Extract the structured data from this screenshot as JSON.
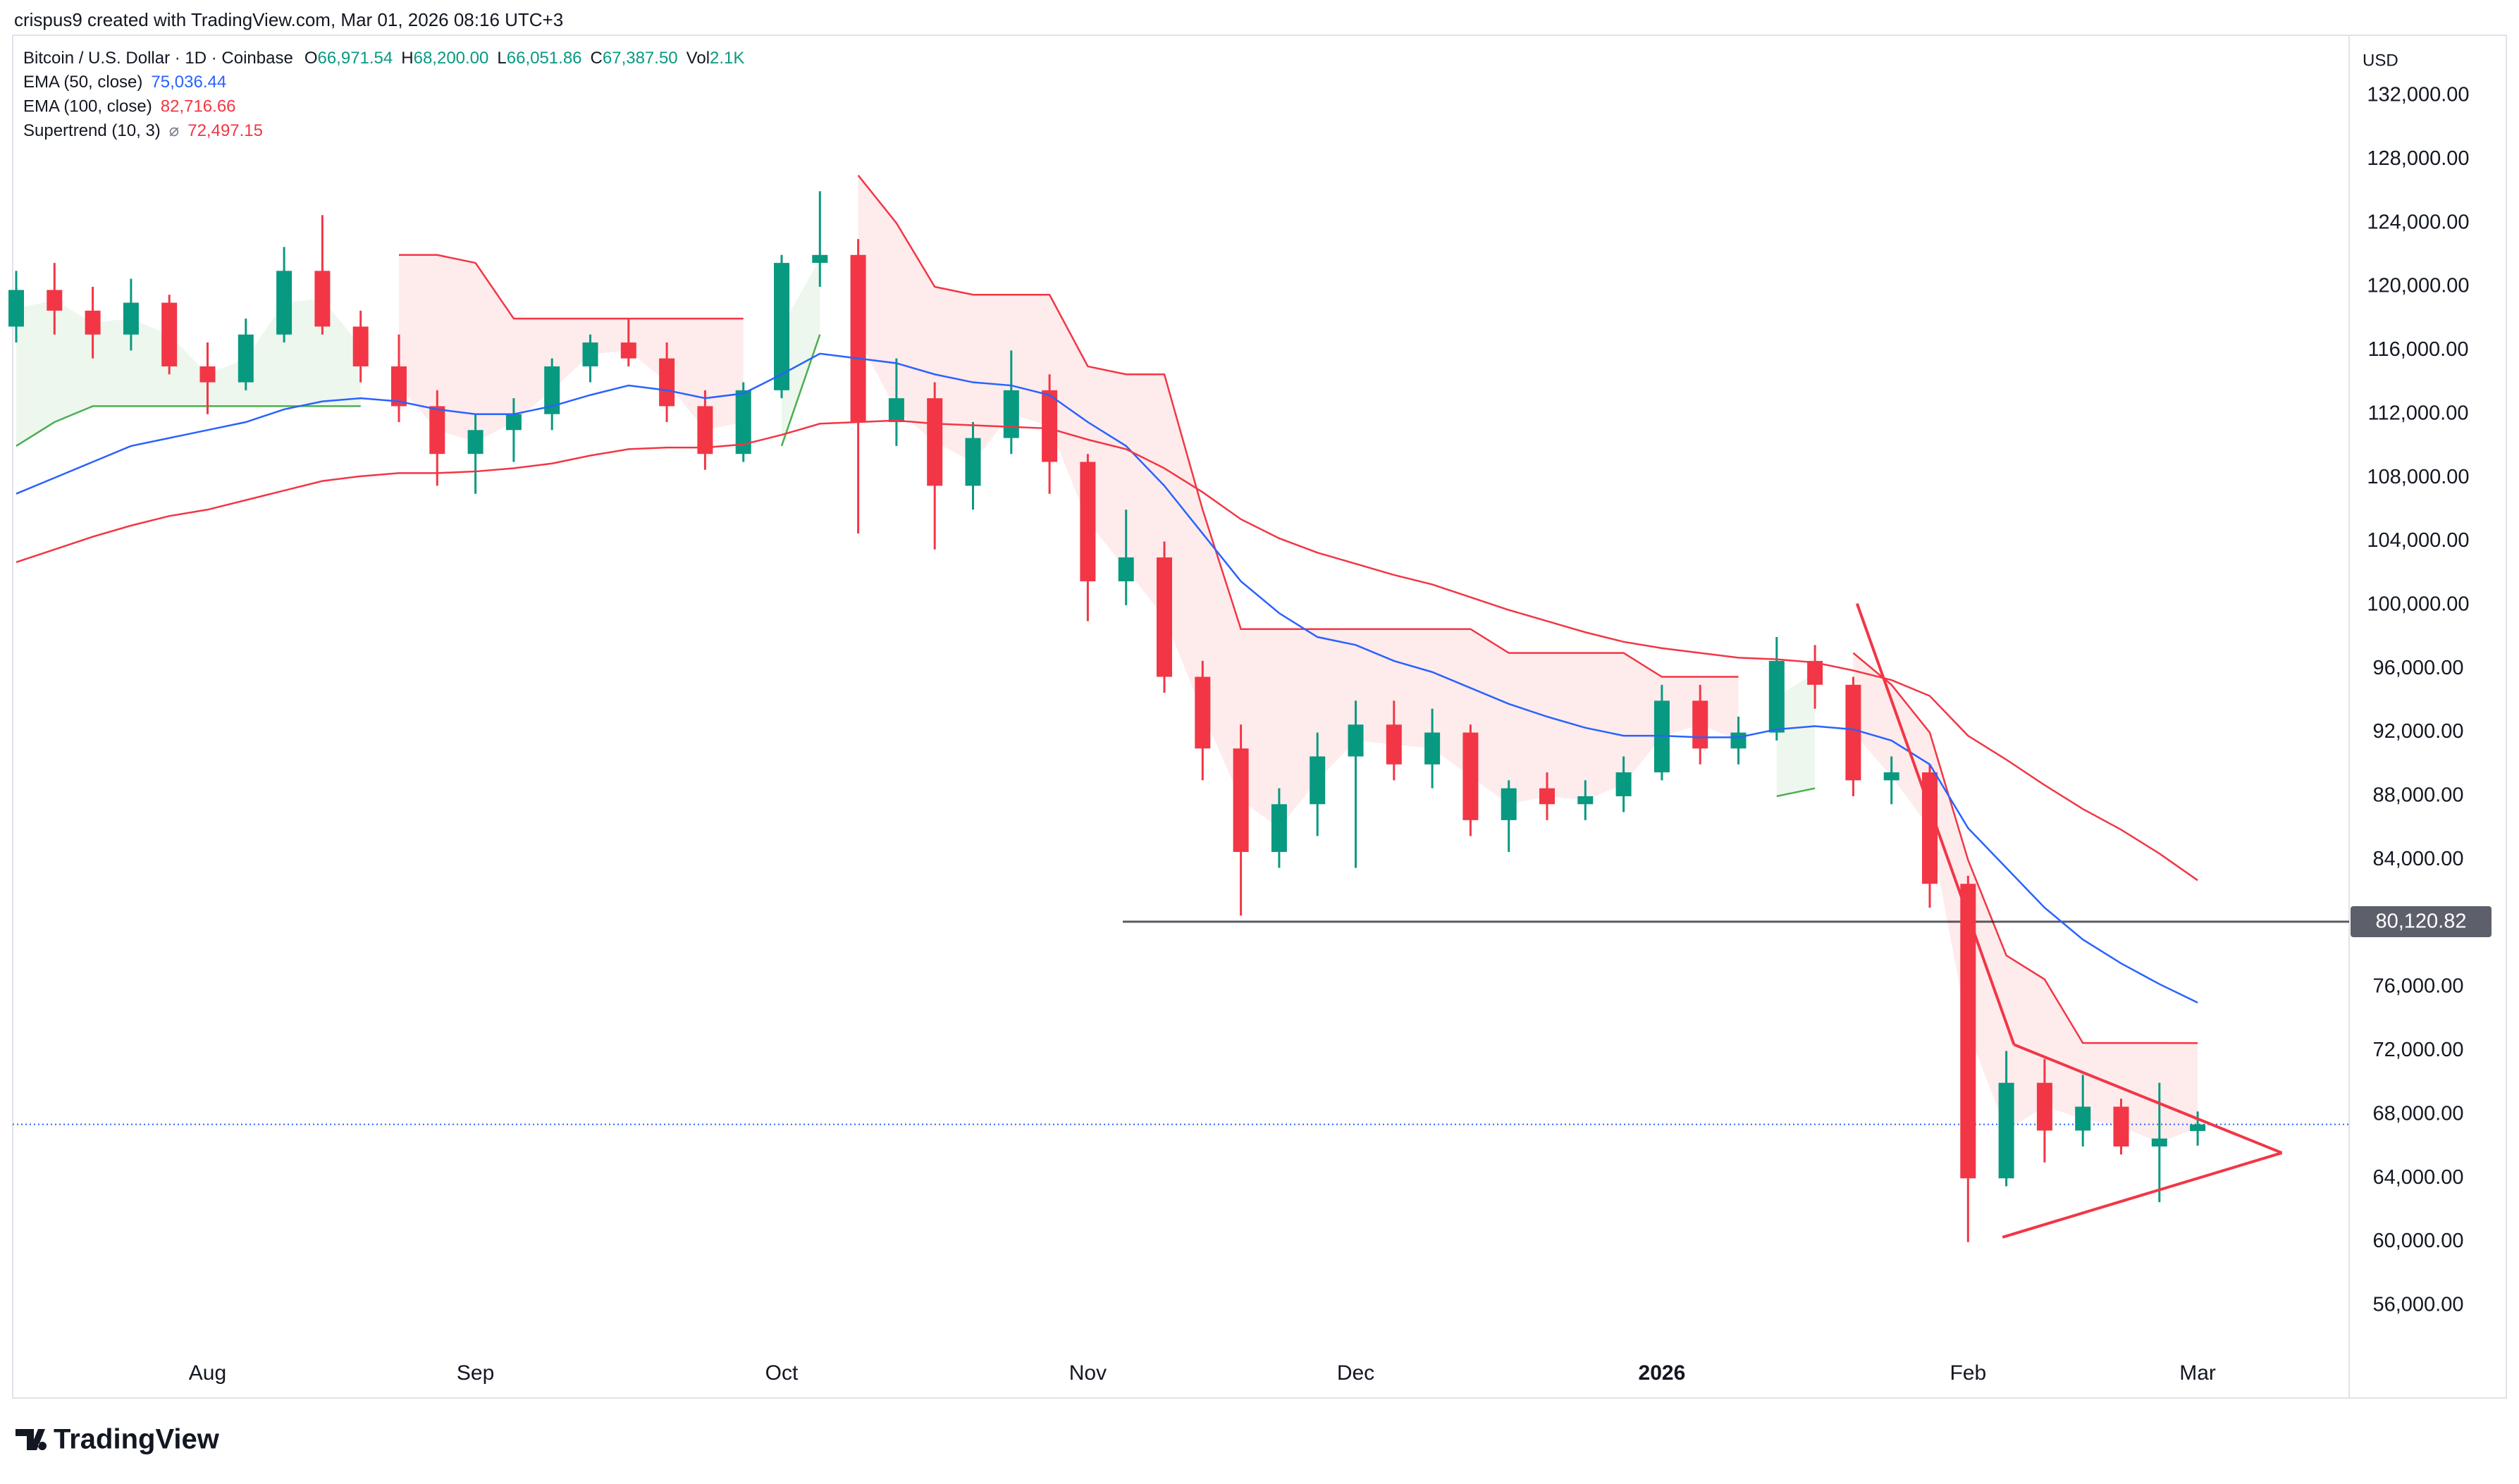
{
  "header": {
    "credit": "crispus9 created with TradingView.com, Mar 01, 2026 08:16 UTC+3",
    "symbol": "Bitcoin / U.S. Dollar · 1D · Coinbase",
    "ohlc": [
      [
        "O",
        "66,971.54"
      ],
      [
        "H",
        "68,200.00"
      ],
      [
        "L",
        "66,051.86"
      ],
      [
        "C",
        "67,387.50"
      ],
      [
        "Vol",
        "2.1K"
      ]
    ],
    "currency": "USD"
  },
  "brand": "TradingView",
  "chart_data": {
    "type": "candlestick",
    "categories": [
      null,
      null,
      null,
      null,
      null,
      "Aug",
      null,
      null,
      null,
      null,
      null,
      null,
      "Sep",
      null,
      null,
      null,
      null,
      null,
      null,
      null,
      "Oct",
      null,
      null,
      null,
      null,
      null,
      null,
      null,
      "Nov",
      null,
      null,
      null,
      null,
      null,
      null,
      "Dec",
      null,
      null,
      null,
      null,
      null,
      null,
      null,
      "2026",
      null,
      null,
      null,
      null,
      null,
      null,
      null,
      "Feb",
      null,
      null,
      null,
      null,
      null,
      "Mar"
    ],
    "candles": [
      [
        117500,
        121000,
        116500,
        119800
      ],
      [
        119800,
        121500,
        117000,
        118500
      ],
      [
        118500,
        120000,
        115500,
        117000
      ],
      [
        117000,
        120500,
        116000,
        119000
      ],
      [
        119000,
        119500,
        114500,
        115000
      ],
      [
        115000,
        116500,
        112000,
        114000
      ],
      [
        114000,
        118000,
        113500,
        117000
      ],
      [
        117000,
        122500,
        116500,
        121000
      ],
      [
        121000,
        124500,
        117000,
        117500
      ],
      [
        117500,
        118500,
        114000,
        115000
      ],
      [
        115000,
        117000,
        111500,
        112500
      ],
      [
        112500,
        113500,
        107500,
        109500
      ],
      [
        109500,
        112000,
        107000,
        111000
      ],
      [
        111000,
        113000,
        109000,
        112000
      ],
      [
        112000,
        115500,
        111000,
        115000
      ],
      [
        115000,
        117000,
        114000,
        116500
      ],
      [
        116500,
        118000,
        115000,
        115500
      ],
      [
        115500,
        116500,
        111500,
        112500
      ],
      [
        112500,
        113500,
        108500,
        109500
      ],
      [
        109500,
        114000,
        109000,
        113500
      ],
      [
        113500,
        122000,
        113000,
        121500
      ],
      [
        121500,
        126000,
        120000,
        122000
      ],
      [
        122000,
        123000,
        104500,
        111500
      ],
      [
        111500,
        115500,
        110000,
        113000
      ],
      [
        113000,
        114000,
        103500,
        107500
      ],
      [
        107500,
        111500,
        106000,
        110500
      ],
      [
        110500,
        116000,
        109500,
        113500
      ],
      [
        113500,
        114500,
        107000,
        109000
      ],
      [
        109000,
        109500,
        99000,
        101500
      ],
      [
        101500,
        106000,
        100000,
        103000
      ],
      [
        103000,
        104000,
        94500,
        95500
      ],
      [
        95500,
        96500,
        89000,
        91000
      ],
      [
        91000,
        92500,
        80500,
        84500
      ],
      [
        84500,
        88500,
        83500,
        87500
      ],
      [
        87500,
        92000,
        85500,
        90500
      ],
      [
        90500,
        94000,
        83500,
        92500
      ],
      [
        92500,
        94000,
        89000,
        90000
      ],
      [
        90000,
        93500,
        88500,
        92000
      ],
      [
        92000,
        92500,
        85500,
        86500
      ],
      [
        86500,
        89000,
        84500,
        88500
      ],
      [
        88500,
        89500,
        86500,
        87500
      ],
      [
        87500,
        89000,
        86500,
        88000
      ],
      [
        88000,
        90500,
        87000,
        89500
      ],
      [
        89500,
        95000,
        89000,
        94000
      ],
      [
        94000,
        95000,
        90000,
        91000
      ],
      [
        91000,
        93000,
        90000,
        92000
      ],
      [
        92000,
        98000,
        91500,
        96500
      ],
      [
        96500,
        97500,
        93500,
        95000
      ],
      [
        95000,
        95500,
        88000,
        89000
      ],
      [
        89000,
        90500,
        87500,
        89500
      ],
      [
        89500,
        90000,
        81000,
        82500
      ],
      [
        82500,
        83000,
        60000,
        64000
      ],
      [
        64000,
        72000,
        63500,
        70000
      ],
      [
        70000,
        71500,
        65000,
        67000
      ],
      [
        67000,
        70500,
        66000,
        68500
      ],
      [
        68500,
        69000,
        65500,
        66000
      ],
      [
        66000,
        70000,
        62500,
        66500
      ],
      [
        66971.54,
        68200,
        66051.86,
        67387.5
      ]
    ],
    "up_color": "#089981",
    "down_color": "#f23645",
    "series": [
      {
        "name": "EMA (50, close)",
        "legend_value": "75,036.44",
        "color": "#2962ff",
        "values": [
          107000,
          108000,
          109000,
          110000,
          110500,
          111000,
          111500,
          112300,
          112800,
          113000,
          112800,
          112300,
          112000,
          112000,
          112500,
          113200,
          113800,
          113500,
          113000,
          113300,
          114500,
          115800,
          115500,
          115200,
          114500,
          114000,
          113800,
          113200,
          111500,
          110000,
          107500,
          104500,
          101500,
          99500,
          98000,
          97500,
          96500,
          95800,
          94800,
          93800,
          93000,
          92300,
          91800,
          91800,
          91700,
          91700,
          92200,
          92400,
          92200,
          91500,
          90000,
          86000,
          83500,
          81000,
          79000,
          77500,
          76200,
          75036.44
        ]
      },
      {
        "name": "EMA (100, close)",
        "legend_value": "82,716.66",
        "color": "#f23645",
        "values": [
          102700,
          103500,
          104300,
          105000,
          105600,
          106000,
          106600,
          107200,
          107800,
          108100,
          108300,
          108300,
          108400,
          108600,
          108900,
          109400,
          109800,
          109900,
          109900,
          110100,
          110700,
          111400,
          111500,
          111600,
          111400,
          111300,
          111200,
          111100,
          110400,
          109800,
          108600,
          107100,
          105400,
          104200,
          103300,
          102600,
          101900,
          101300,
          100500,
          99700,
          99000,
          98300,
          97700,
          97300,
          97000,
          96700,
          96600,
          96400,
          95900,
          95300,
          94300,
          91800,
          90300,
          88700,
          87200,
          85900,
          84400,
          82716.66
        ]
      },
      {
        "name": "Supertrend (10, 3)",
        "legend_symbol": "⌀",
        "legend_value": "72,497.15",
        "supertrend": true,
        "up_color": "#4caf50",
        "down_color": "#f23645",
        "values": [
          110000,
          111500,
          112500,
          112500,
          112500,
          112500,
          112500,
          112500,
          112500,
          112500,
          122000,
          122000,
          121500,
          118000,
          118000,
          118000,
          118000,
          118000,
          118000,
          118000,
          110000,
          117000,
          127000,
          124000,
          120000,
          119500,
          119500,
          119500,
          115000,
          114500,
          114500,
          106000,
          98500,
          98500,
          98500,
          98500,
          98500,
          98500,
          98500,
          97000,
          97000,
          97000,
          97000,
          95500,
          95500,
          95500,
          88000,
          88500,
          97000,
          95000,
          92000,
          84000,
          78000,
          76500,
          72500,
          72500,
          72500,
          72497.15
        ]
      }
    ],
    "hline": {
      "value": 80120.82,
      "label": "80,120.82",
      "color": "#131722"
    },
    "trendlines": [
      {
        "color": "#f23645",
        "points": [
          [
            48.1,
            100100
          ],
          [
            52.2,
            72400
          ]
        ]
      },
      {
        "color": "#f23645",
        "points": [
          [
            52.2,
            72400
          ],
          [
            59.2,
            65600
          ]
        ]
      },
      {
        "color": "#f23645",
        "points": [
          [
            51.9,
            60300
          ],
          [
            59.2,
            65600
          ]
        ]
      }
    ],
    "ylim": [
      50200,
      135800
    ],
    "yticks": [
      {
        "value": 56000,
        "label": "56,000.00"
      },
      {
        "value": 60000,
        "label": "60,000.00"
      },
      {
        "value": 64000,
        "label": "64,000.00"
      },
      {
        "value": 68000,
        "label": "68,000.00"
      },
      {
        "value": 72000,
        "label": "72,000.00"
      },
      {
        "value": 76000,
        "label": "76,000.00"
      },
      {
        "value": 80000,
        "label": "80,000.00"
      },
      {
        "value": 84000,
        "label": "84,000.00"
      },
      {
        "value": 88000,
        "label": "88,000.00"
      },
      {
        "value": 92000,
        "label": "92,000.00"
      },
      {
        "value": 96000,
        "label": "96,000.00"
      },
      {
        "value": 100000,
        "label": "100,000.00"
      },
      {
        "value": 104000,
        "label": "104,000.00"
      },
      {
        "value": 108000,
        "label": "108,000.00"
      },
      {
        "value": 112000,
        "label": "112,000.00"
      },
      {
        "value": 116000,
        "label": "116,000.00"
      },
      {
        "value": 120000,
        "label": "120,000.00"
      },
      {
        "value": 124000,
        "label": "124,000.00"
      },
      {
        "value": 128000,
        "label": "128,000.00"
      },
      {
        "value": 132000,
        "label": "132,000.00"
      }
    ],
    "grid": false
  }
}
